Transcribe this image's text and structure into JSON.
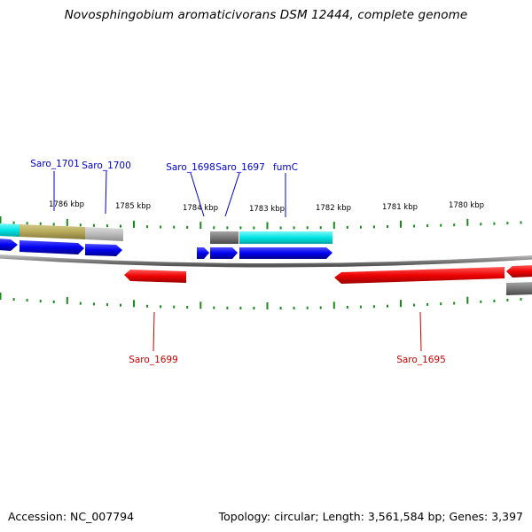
{
  "title": "Novosphingobium aromaticivorans DSM 12444, complete genome",
  "footer": {
    "accession": "Accession: NC_007794",
    "summary": "Topology: circular; Length: 3,561,584 bp; Genes: 3,397"
  },
  "ruler": {
    "ticks": [
      {
        "label": "1786 kbp"
      },
      {
        "label": "1785 kbp"
      },
      {
        "label": "1784 kbp"
      },
      {
        "label": "1783 kbp"
      },
      {
        "label": "1782 kbp"
      },
      {
        "label": "1781 kbp"
      },
      {
        "label": "1780 kbp"
      }
    ],
    "tick_color": "#1a8a1a"
  },
  "gene_labels": [
    {
      "name": "Saro_1701",
      "strand": "+",
      "color": "#0000cc"
    },
    {
      "name": "Saro_1700",
      "strand": "+",
      "color": "#0000cc"
    },
    {
      "name": "Saro_1698",
      "strand": "+",
      "color": "#0000cc"
    },
    {
      "name": "Saro_1697",
      "strand": "+",
      "color": "#0000cc"
    },
    {
      "name": "fumC",
      "strand": "+",
      "color": "#0000cc"
    },
    {
      "name": "Saro_1699",
      "strand": "-",
      "color": "#cc0000"
    },
    {
      "name": "Saro_1695",
      "strand": "-",
      "color": "#cc0000"
    }
  ],
  "colors": {
    "forward_cds": "#0000ee",
    "reverse_cds": "#ee0000",
    "backbone": "#888888",
    "feature_cyan": "#00e5e5",
    "feature_olive": "#b5a85a",
    "feature_grey": "#777777",
    "feature_light_grey": "#bbbbbb"
  }
}
